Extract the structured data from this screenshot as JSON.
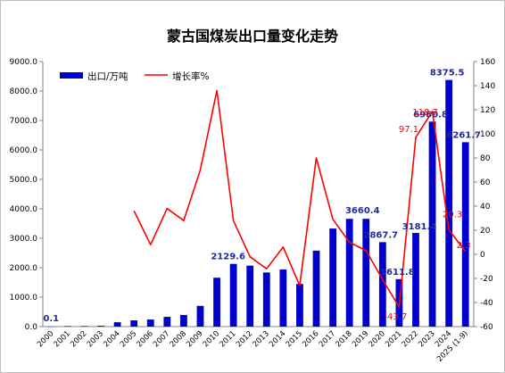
{
  "chart_data": {
    "type": "bar",
    "title": "蒙古国煤炭出口量变化走势",
    "categories": [
      "2000",
      "2001",
      "2002",
      "2003",
      "2004",
      "2005",
      "2006",
      "2007",
      "2008",
      "2009",
      "2010",
      "2011",
      "2012",
      "2013",
      "2014",
      "2015",
      "2016",
      "2017",
      "2018",
      "2019",
      "2020",
      "2021",
      "2022",
      "2023",
      "2024",
      "2025 (1-9)"
    ],
    "series": [
      {
        "name": "出口/万吨",
        "type": "bar",
        "axis": "left",
        "color": "#0000cc",
        "values": [
          0.1,
          18,
          20,
          27,
          149,
          211,
          240,
          331,
          395,
          703,
          1660,
          2129.6,
          2070,
          1838,
          1940,
          1450,
          2580,
          3330,
          3660,
          3660.4,
          2867.7,
          1611.8,
          3181.4,
          6960.8,
          8375.5,
          6261.7
        ],
        "labels": {
          "0": "0.1",
          "11": "2129.6",
          "19": "3660.4",
          "20": "2867.7",
          "21": "1611.8",
          "22": "3181.4",
          "23": "6960.8",
          "24": "8375.5",
          "25": "6261.7"
        }
      },
      {
        "name": "增长率%",
        "type": "line",
        "axis": "right",
        "color": "#ff0000",
        "values": [
          null,
          null,
          null,
          null,
          null,
          36,
          8,
          38,
          28,
          70,
          136,
          28,
          -2,
          -12,
          6,
          -26,
          80,
          29,
          10,
          3,
          -21,
          -43.7,
          97.1,
          118.7,
          20.3,
          2.3
        ],
        "labels": {
          "21": "-43.7",
          "22": "97.1",
          "23": "118.7",
          "24": "20.3",
          "25": "2.3"
        }
      }
    ],
    "y_left": {
      "min": 0,
      "max": 9000,
      "step": 1000,
      "tick_labels": [
        "0.0",
        "1000.0",
        "2000.0",
        "3000.0",
        "4000.0",
        "5000.0",
        "6000.0",
        "7000.0",
        "8000.0",
        "9000.0"
      ]
    },
    "y_right": {
      "min": -60,
      "max": 160,
      "step": 20,
      "tick_labels": [
        "-60",
        "-40",
        "-20",
        "0",
        "20",
        "40",
        "60",
        "80",
        "100",
        "120",
        "140",
        "160"
      ]
    },
    "legend": {
      "position": "top-left"
    }
  }
}
